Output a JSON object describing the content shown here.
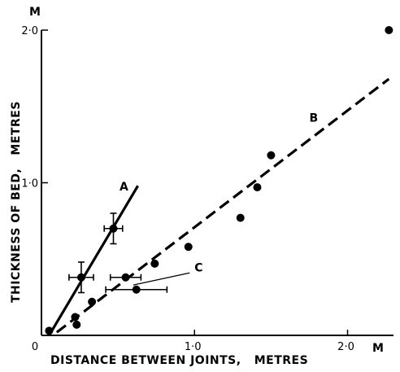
{
  "chart_data": {
    "type": "scatter",
    "xlabel": "DISTANCE BETWEEN JOINTS,   METRES",
    "ylabel": "THICKNESS OF BED,   METRES",
    "x_unit": "M",
    "y_unit": "M",
    "xlim": [
      0,
      2.3
    ],
    "ylim": [
      0,
      2.0
    ],
    "x_ticks": [
      {
        "value": 0,
        "label": "0"
      },
      {
        "value": 1.0,
        "label": "1·0"
      },
      {
        "value": 2.0,
        "label": "2·0"
      }
    ],
    "y_ticks": [
      {
        "value": 1.0,
        "label": "1·0"
      },
      {
        "value": 2.0,
        "label": "2·0"
      }
    ],
    "grid": false,
    "points": [
      {
        "x": 0.05,
        "y": 0.03
      },
      {
        "x": 0.22,
        "y": 0.12
      },
      {
        "x": 0.23,
        "y": 0.07
      },
      {
        "x": 0.33,
        "y": 0.22
      },
      {
        "x": 0.26,
        "y": 0.38,
        "xerr": 0.08,
        "yerr": 0.1
      },
      {
        "x": 0.47,
        "y": 0.7,
        "xerr": 0.06,
        "yerr": 0.1
      },
      {
        "x": 0.55,
        "y": 0.38,
        "xerr": 0.1
      },
      {
        "x": 0.62,
        "y": 0.3,
        "xerr": 0.2
      },
      {
        "x": 0.74,
        "y": 0.47
      },
      {
        "x": 0.96,
        "y": 0.58
      },
      {
        "x": 1.3,
        "y": 0.77
      },
      {
        "x": 1.41,
        "y": 0.97
      },
      {
        "x": 1.5,
        "y": 1.18
      },
      {
        "x": 2.27,
        "y": 2.0
      }
    ],
    "lines": [
      {
        "label": "A",
        "style": "solid",
        "from": [
          0.05,
          0.0
        ],
        "to": [
          0.63,
          0.98
        ]
      },
      {
        "label": "B",
        "style": "dashed",
        "from": [
          0.1,
          0.02
        ],
        "to": [
          2.27,
          1.68
        ]
      }
    ],
    "annotations": [
      {
        "text": "A",
        "x": 0.51,
        "y": 0.95
      },
      {
        "text": "B",
        "x": 1.75,
        "y": 1.4
      },
      {
        "text": "C",
        "x": 1.0,
        "y": 0.42,
        "pointer_from": [
          1.0,
          0.42
        ],
        "pointer_to": [
          0.6,
          0.33
        ]
      }
    ]
  }
}
